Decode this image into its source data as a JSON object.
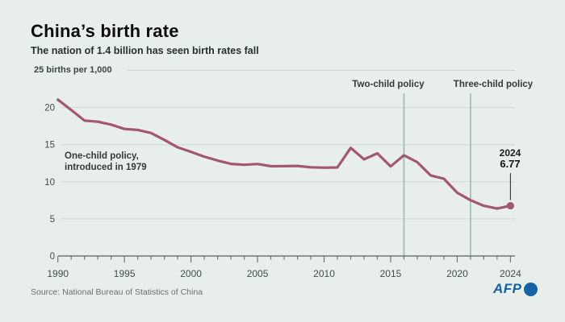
{
  "header": {
    "title": "China’s birth rate",
    "subtitle": "The nation of 1.4 billion has seen birth rates fall"
  },
  "chart_data": {
    "type": "line",
    "title": "China’s birth rate",
    "unit_label": "25 births per 1,000",
    "xlabel": "",
    "ylabel": "births per 1,000",
    "xlim": [
      1990,
      2024
    ],
    "ylim": [
      0,
      25
    ],
    "grid": true,
    "x_tick_labels": [
      "1990",
      "1995",
      "2000",
      "2005",
      "2010",
      "2015",
      "2020",
      "2024"
    ],
    "x_tick_years": [
      1990,
      1995,
      2000,
      2005,
      2010,
      2015,
      2020,
      2024
    ],
    "y_tick_labels": [
      "0",
      "5",
      "10",
      "15",
      "20"
    ],
    "y_ticks": [
      0,
      5,
      10,
      15,
      20
    ],
    "x": [
      1990,
      1991,
      1992,
      1993,
      1994,
      1995,
      1996,
      1997,
      1998,
      1999,
      2000,
      2001,
      2002,
      2003,
      2004,
      2005,
      2006,
      2007,
      2008,
      2009,
      2010,
      2011,
      2012,
      2013,
      2014,
      2015,
      2016,
      2017,
      2018,
      2019,
      2020,
      2021,
      2022,
      2023,
      2024
    ],
    "series": [
      {
        "name": "Birth rate",
        "color": "#a3566f",
        "values": [
          21.06,
          19.68,
          18.24,
          18.09,
          17.7,
          17.12,
          16.98,
          16.57,
          15.64,
          14.64,
          14.03,
          13.38,
          12.86,
          12.41,
          12.29,
          12.4,
          12.09,
          12.1,
          12.14,
          11.95,
          11.9,
          11.93,
          14.57,
          13.03,
          13.83,
          12.07,
          13.57,
          12.64,
          10.86,
          10.41,
          8.52,
          7.52,
          6.77,
          6.39,
          6.77
        ]
      }
    ],
    "annotations": {
      "one_child_line1": "One-child policy,",
      "one_child_line2": "introduced in 1979",
      "two_child": {
        "label": "Two-child policy",
        "year": 2016
      },
      "three_child": {
        "label": "Three-child policy",
        "year": 2021
      },
      "last_point": {
        "year_label": "2024",
        "value_label": "6.77"
      }
    },
    "colors": {
      "background": "#e8efeb",
      "gridline": "#ccd6d0",
      "axis": "#6e7672",
      "policy_line": "#a0b4b9",
      "series_line": "#a3566f",
      "pointer_line": "#333333",
      "tick_text": "#434c48"
    }
  },
  "footer": {
    "source": "Source: National Bureau of Statistics of China",
    "logo_text": "AFP"
  }
}
